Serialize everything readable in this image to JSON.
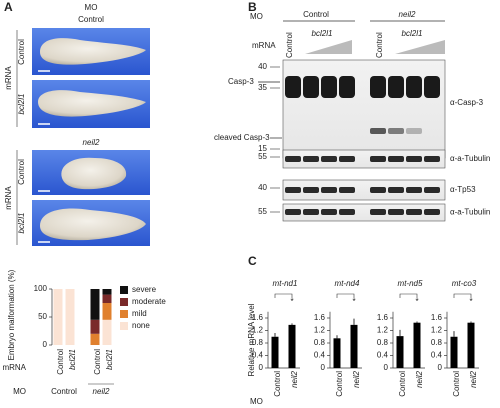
{
  "figure": {
    "panel_a": {
      "label": "A",
      "mo": "MO",
      "groups": [
        "Control",
        "neil2"
      ],
      "mrna": "mRNA",
      "rows": [
        "Control",
        "bcl2l1"
      ]
    },
    "panel_b": {
      "label": "B",
      "mo": "MO",
      "groups": [
        "Control",
        "neil2"
      ],
      "mrna": "mRNA",
      "lanes": [
        "Control",
        "bcl2l1"
      ],
      "bands": [
        "Casp-3",
        "cleaved Casp-3"
      ],
      "blots": [
        {
          "antibody": "α-Casp-3",
          "markers": [
            40,
            35,
            15
          ]
        },
        {
          "antibody": "α-a-Tubulin",
          "markers": [
            55
          ]
        },
        {
          "antibody": "α-Tp53",
          "markers": [
            40
          ]
        },
        {
          "antibody": "α-a-Tubulin",
          "markers": [
            55
          ]
        }
      ]
    },
    "panel_c": {
      "label": "C"
    }
  },
  "chart_data": [
    {
      "type": "stacked-bar",
      "y_label": "Embryo malformation (%)",
      "ylim": [
        0,
        100
      ],
      "yticks": [
        0,
        50,
        100
      ],
      "mrna_label": "mRNA",
      "mo_label": "MO",
      "categories": [
        "Control",
        "bcl2l1",
        "Control",
        "bcl2l1"
      ],
      "mo_categories": [
        "Control",
        "neil2"
      ],
      "legend": "right",
      "series": [
        {
          "name": "severe",
          "color": "#111111",
          "values": [
            0,
            0,
            55,
            10
          ]
        },
        {
          "name": "moderate",
          "color": "#7a2a2a",
          "values": [
            0,
            0,
            25,
            15
          ]
        },
        {
          "name": "mild",
          "color": "#e0802e",
          "values": [
            0,
            0,
            20,
            30
          ]
        },
        {
          "name": "none",
          "color": "#fbe3d4",
          "values": [
            100,
            100,
            0,
            45
          ]
        }
      ]
    },
    {
      "type": "bar",
      "title": "mt-nd1",
      "y_label": "Relative mRNA level",
      "mo_label": "MO",
      "significance": "*",
      "categories": [
        "Control",
        "neil2"
      ],
      "values": [
        1.0,
        1.38
      ],
      "errors": [
        0.12,
        0.05
      ],
      "color": "#000000",
      "ylim": [
        0,
        1.8
      ],
      "yticks": [
        0,
        0.4,
        0.8,
        1.2,
        1.6
      ]
    },
    {
      "type": "bar",
      "title": "mt-nd4",
      "significance": "*",
      "categories": [
        "Control",
        "neil2"
      ],
      "values": [
        0.95,
        1.38
      ],
      "errors": [
        0.1,
        0.2
      ],
      "color": "#000000",
      "ylim": [
        0,
        1.8
      ],
      "yticks": [
        0,
        0.4,
        0.8,
        1.2,
        1.6
      ]
    },
    {
      "type": "bar",
      "title": "mt-nd5",
      "significance": "*",
      "categories": [
        "Control",
        "neil2"
      ],
      "values": [
        1.02,
        1.45
      ],
      "errors": [
        0.2,
        0.04
      ],
      "color": "#000000",
      "ylim": [
        0,
        1.8
      ],
      "yticks": [
        0,
        0.4,
        0.8,
        1.2,
        1.6
      ]
    },
    {
      "type": "bar",
      "title": "mt-co3",
      "significance": "*",
      "categories": [
        "Control",
        "neil2"
      ],
      "values": [
        1.0,
        1.45
      ],
      "errors": [
        0.18,
        0.04
      ],
      "color": "#000000",
      "ylim": [
        0,
        1.8
      ],
      "yticks": [
        0,
        0.4,
        0.8,
        1.2,
        1.6
      ]
    }
  ]
}
